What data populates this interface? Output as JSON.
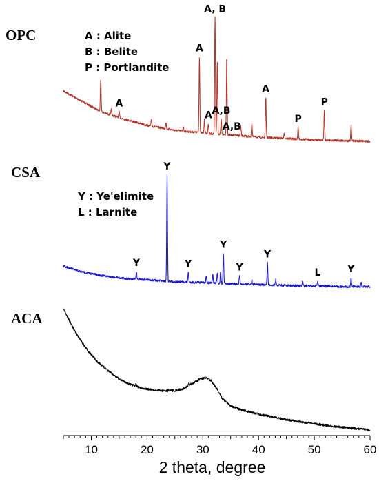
{
  "chart_data": {
    "type": "line",
    "title": "",
    "xlabel": "2 theta, degree",
    "ylabel": "",
    "xlim": [
      5,
      60
    ],
    "xticks": [
      10,
      20,
      30,
      40,
      50,
      60
    ],
    "grid": false,
    "series": [
      {
        "name": "OPC",
        "color": "#b03a2e",
        "legend": [
          "A : Alite",
          "B : Belite",
          "P : Portlandite"
        ],
        "baseline": [
          [
            5,
            132
          ],
          [
            9,
            150
          ],
          [
            12,
            163
          ],
          [
            16,
            173
          ],
          [
            20,
            182
          ],
          [
            25,
            189
          ],
          [
            30,
            193
          ],
          [
            35,
            196
          ],
          [
            40,
            199
          ],
          [
            45,
            201
          ],
          [
            50,
            203
          ],
          [
            55,
            204
          ],
          [
            60,
            205
          ]
        ],
        "peaks": [
          [
            11.7,
            48
          ],
          [
            13.6,
            8
          ],
          [
            15.0,
            8
          ],
          [
            20.8,
            10
          ],
          [
            23.4,
            9
          ],
          [
            26.5,
            7
          ],
          [
            29.4,
            110
          ],
          [
            30.3,
            20
          ],
          [
            31.0,
            14
          ],
          [
            32.2,
            169
          ],
          [
            32.6,
            104
          ],
          [
            33.3,
            22
          ],
          [
            34.3,
            113
          ],
          [
            36.8,
            15
          ],
          [
            38.8,
            20
          ],
          [
            41.3,
            58
          ],
          [
            44.6,
            9
          ],
          [
            47.1,
            17
          ],
          [
            51.8,
            43
          ],
          [
            56.6,
            22
          ]
        ],
        "peak_labels": [
          {
            "text": "A",
            "x": 15.0
          },
          {
            "text": "A",
            "x": 29.4
          },
          {
            "text": "A",
            "x": 31.0
          },
          {
            "text": "A, B",
            "x": 32.2
          },
          {
            "text": "A,B",
            "x": 33.3
          },
          {
            "text": "A,B",
            "x": 35.2
          },
          {
            "text": "A",
            "x": 41.3
          },
          {
            "text": "P",
            "x": 47.1
          },
          {
            "text": "P",
            "x": 51.8
          }
        ]
      },
      {
        "name": "CSA",
        "color": "#1a1ac8",
        "legend": [
          "Y : Ye'elimite",
          "L :  Larnite"
        ],
        "baseline": [
          [
            5,
            386
          ],
          [
            8,
            394
          ],
          [
            12,
            400
          ],
          [
            16,
            404
          ],
          [
            20,
            406
          ],
          [
            25,
            409
          ],
          [
            30,
            410
          ],
          [
            35,
            412
          ],
          [
            40,
            413
          ],
          [
            45,
            414
          ],
          [
            50,
            415
          ],
          [
            55,
            416
          ],
          [
            60,
            416
          ]
        ],
        "peaks": [
          [
            18.1,
            11
          ],
          [
            23.6,
            154
          ],
          [
            27.4,
            14
          ],
          [
            30.6,
            10
          ],
          [
            31.8,
            12
          ],
          [
            32.6,
            15
          ],
          [
            33.2,
            18
          ],
          [
            33.7,
            44
          ],
          [
            36.6,
            12
          ],
          [
            38.8,
            7
          ],
          [
            41.6,
            32
          ],
          [
            43.1,
            8
          ],
          [
            47.9,
            6
          ],
          [
            50.6,
            7
          ],
          [
            56.6,
            13
          ],
          [
            58.4,
            6
          ]
        ],
        "peak_labels": [
          {
            "text": "Y",
            "x": 18.1
          },
          {
            "text": "Y",
            "x": 23.6
          },
          {
            "text": "Y",
            "x": 27.4
          },
          {
            "text": "Y",
            "x": 33.7
          },
          {
            "text": "Y",
            "x": 36.6
          },
          {
            "text": "Y",
            "x": 41.6
          },
          {
            "text": "L",
            "x": 50.6
          },
          {
            "text": "Y",
            "x": 56.6
          }
        ]
      },
      {
        "name": "ACA",
        "color": "#000000",
        "legend": [],
        "baseline": [
          [
            5,
            448
          ],
          [
            7,
            480
          ],
          [
            9,
            505
          ],
          [
            11,
            524
          ],
          [
            13,
            538
          ],
          [
            15,
            550
          ],
          [
            17,
            558
          ],
          [
            19,
            563
          ],
          [
            21,
            566
          ],
          [
            23,
            567
          ],
          [
            25,
            567
          ],
          [
            26.5,
            564
          ],
          [
            28,
            557
          ],
          [
            29.5,
            550
          ],
          [
            30.5,
            548
          ],
          [
            31.5,
            552
          ],
          [
            32.5,
            564
          ],
          [
            33.5,
            578
          ],
          [
            35,
            589
          ],
          [
            37,
            595
          ],
          [
            40,
            601
          ],
          [
            45,
            609
          ],
          [
            50,
            615
          ],
          [
            55,
            620
          ],
          [
            60,
            624
          ]
        ],
        "peaks": [
          [
            18.0,
            4
          ],
          [
            27.5,
            3
          ]
        ],
        "peak_labels": []
      }
    ]
  }
}
